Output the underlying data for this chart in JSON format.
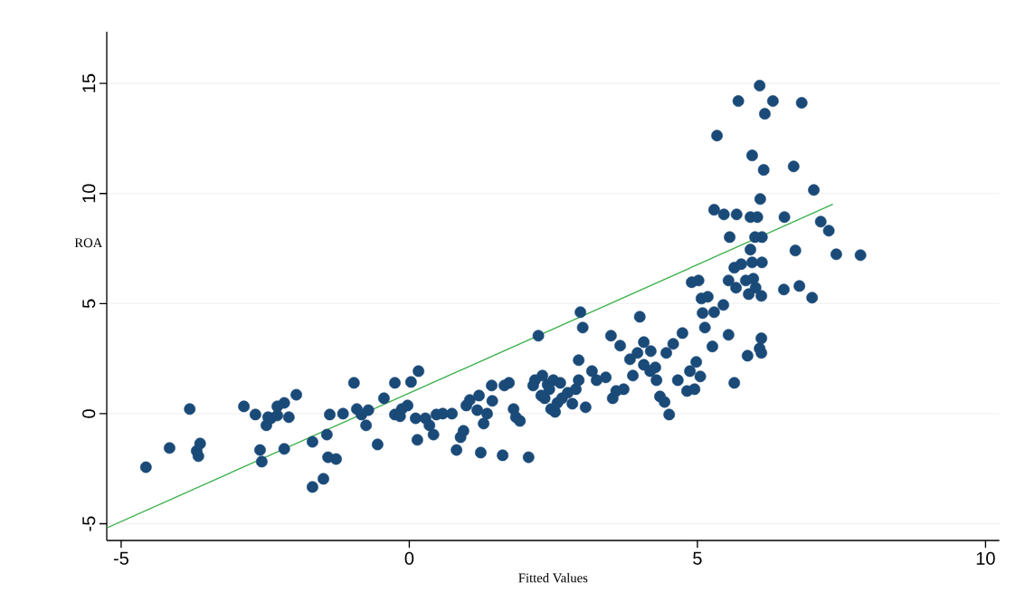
{
  "chart_data": {
    "type": "scatter",
    "xlabel": "Fitted Values",
    "ylabel": "ROA",
    "xlim": [
      -5.25,
      10.24
    ],
    "ylim": [
      -5.76,
      17.35
    ],
    "xticks": [
      -5,
      0,
      5,
      10
    ],
    "yticks": [
      -5,
      0,
      5,
      10,
      15
    ],
    "grid": "y",
    "marker": "circle",
    "series": [
      {
        "color": "#1a4a78",
        "x": [
          -4.57,
          -4.16,
          -3.81,
          -3.66,
          -3.69,
          -3.63,
          -2.87,
          -2.67,
          -2.45,
          -2.29,
          -2.17,
          -2.09,
          -2.4,
          -2.48,
          -2.59,
          -2.56,
          -2.17,
          -1.96,
          -2.29,
          -1.68,
          -1.49,
          -1.68,
          -1.43,
          -1.41,
          -1.27,
          -1.38,
          -1.15,
          -0.96,
          -0.91,
          -0.83,
          -0.75,
          -0.71,
          -0.55,
          -0.44,
          -0.25,
          -0.25,
          -0.16,
          -0.13,
          -0.03,
          0.03,
          0.16,
          0.11,
          0.14,
          0.28,
          0.35,
          0.42,
          0.47,
          0.58,
          0.74,
          0.82,
          0.89,
          0.94,
          0.99,
          1.05,
          1.21,
          1.18,
          1.29,
          1.35,
          1.44,
          1.65,
          1.73,
          1.81,
          1.85,
          1.92,
          2.15,
          2.18,
          2.31,
          2.4,
          2.5,
          2.62,
          2.46,
          1.24,
          1.62,
          1.43,
          2.07,
          2.24,
          2.29,
          2.35,
          2.43,
          2.53,
          2.57,
          2.65,
          2.75,
          2.83,
          2.89,
          2.94,
          3.06,
          2.94,
          3.17,
          3.25,
          3.41,
          3.53,
          3.59,
          3.72,
          3.83,
          3.96,
          4.07,
          4.18,
          4.29,
          4.35,
          4.43,
          4.51,
          3.01,
          2.97,
          3.5,
          3.66,
          3.88,
          4.0,
          4.07,
          4.19,
          4.27,
          4.46,
          4.58,
          4.74,
          4.9,
          5.02,
          5.09,
          5.13,
          5.26,
          4.98,
          4.87,
          5.05,
          4.82,
          4.95,
          4.66,
          5.07,
          5.18,
          5.29,
          5.45,
          5.54,
          5.64,
          5.76,
          5.84,
          5.89,
          6.01,
          6.11,
          6.12,
          5.97,
          5.67,
          5.54,
          5.64,
          5.87,
          6.08,
          6.11,
          6.11,
          6.5,
          6.77,
          6.99,
          5.29,
          5.46,
          5.56,
          5.68,
          5.92,
          6.04,
          6.12,
          6.0,
          5.92,
          5.95,
          6.09,
          6.51,
          6.7,
          6.67,
          6.15,
          5.95,
          5.34,
          6.08,
          5.71,
          6.31,
          6.81,
          6.17,
          7.02,
          7.14,
          7.28,
          7.41,
          7.83
        ],
        "values": [
          -2.43,
          -1.56,
          0.21,
          -1.93,
          -1.69,
          -1.36,
          0.33,
          -0.04,
          -0.16,
          0.33,
          0.49,
          -0.16,
          -0.21,
          -0.53,
          -1.65,
          -2.18,
          -1.6,
          0.86,
          -0.08,
          -3.33,
          -2.96,
          -1.28,
          -0.95,
          -1.98,
          -2.06,
          -0.04,
          0,
          1.4,
          0.21,
          -0.04,
          -0.53,
          0.16,
          -1.4,
          0.7,
          1.4,
          -0.04,
          -0.12,
          0.21,
          0.37,
          1.44,
          1.93,
          -0.21,
          -1.19,
          -0.21,
          -0.53,
          -0.95,
          -0.04,
          0,
          0,
          -1.65,
          -1.07,
          -0.78,
          0.37,
          0.62,
          0.82,
          0.16,
          -0.45,
          0,
          0.58,
          1.28,
          1.4,
          0.21,
          -0.16,
          -0.33,
          1.28,
          1.52,
          1.73,
          1.32,
          1.52,
          1.4,
          0.21,
          -1.77,
          -1.89,
          1.28,
          -1.98,
          3.54,
          0.82,
          0.7,
          1.11,
          0.08,
          0.49,
          0.7,
          0.95,
          0.45,
          1.11,
          1.52,
          0.29,
          2.43,
          1.93,
          1.52,
          1.65,
          0.7,
          1.03,
          1.11,
          2.47,
          2.76,
          2.22,
          1.93,
          1.52,
          0.78,
          0.53,
          -0.04,
          3.91,
          4.61,
          3.54,
          3.09,
          1.73,
          4.4,
          3.25,
          2.84,
          2.1,
          2.76,
          3.17,
          3.66,
          5.97,
          6.05,
          4.57,
          3.91,
          3.05,
          2.35,
          1.93,
          1.69,
          1.03,
          1.11,
          1.52,
          5.23,
          5.31,
          4.61,
          4.94,
          6.05,
          6.63,
          6.79,
          6.05,
          5.43,
          5.72,
          5.35,
          6.87,
          6.13,
          5.72,
          3.58,
          1.4,
          2.63,
          2.96,
          3.42,
          2.76,
          5.64,
          5.8,
          5.27,
          9.26,
          9.05,
          8.02,
          9.05,
          8.93,
          8.93,
          8.02,
          8.02,
          7.45,
          6.87,
          9.75,
          8.93,
          7.41,
          11.23,
          11.07,
          11.73,
          12.63,
          14.9,
          14.2,
          14.2,
          14.12,
          13.62,
          10.16,
          8.72,
          8.31,
          7.24,
          7.2
        ]
      },
      {
        "type": "line",
        "color": "#3cb04a",
        "marker": "none",
        "x": [
          -5.25,
          7.35
        ],
        "values": [
          -5.19,
          9.51
        ]
      }
    ]
  }
}
